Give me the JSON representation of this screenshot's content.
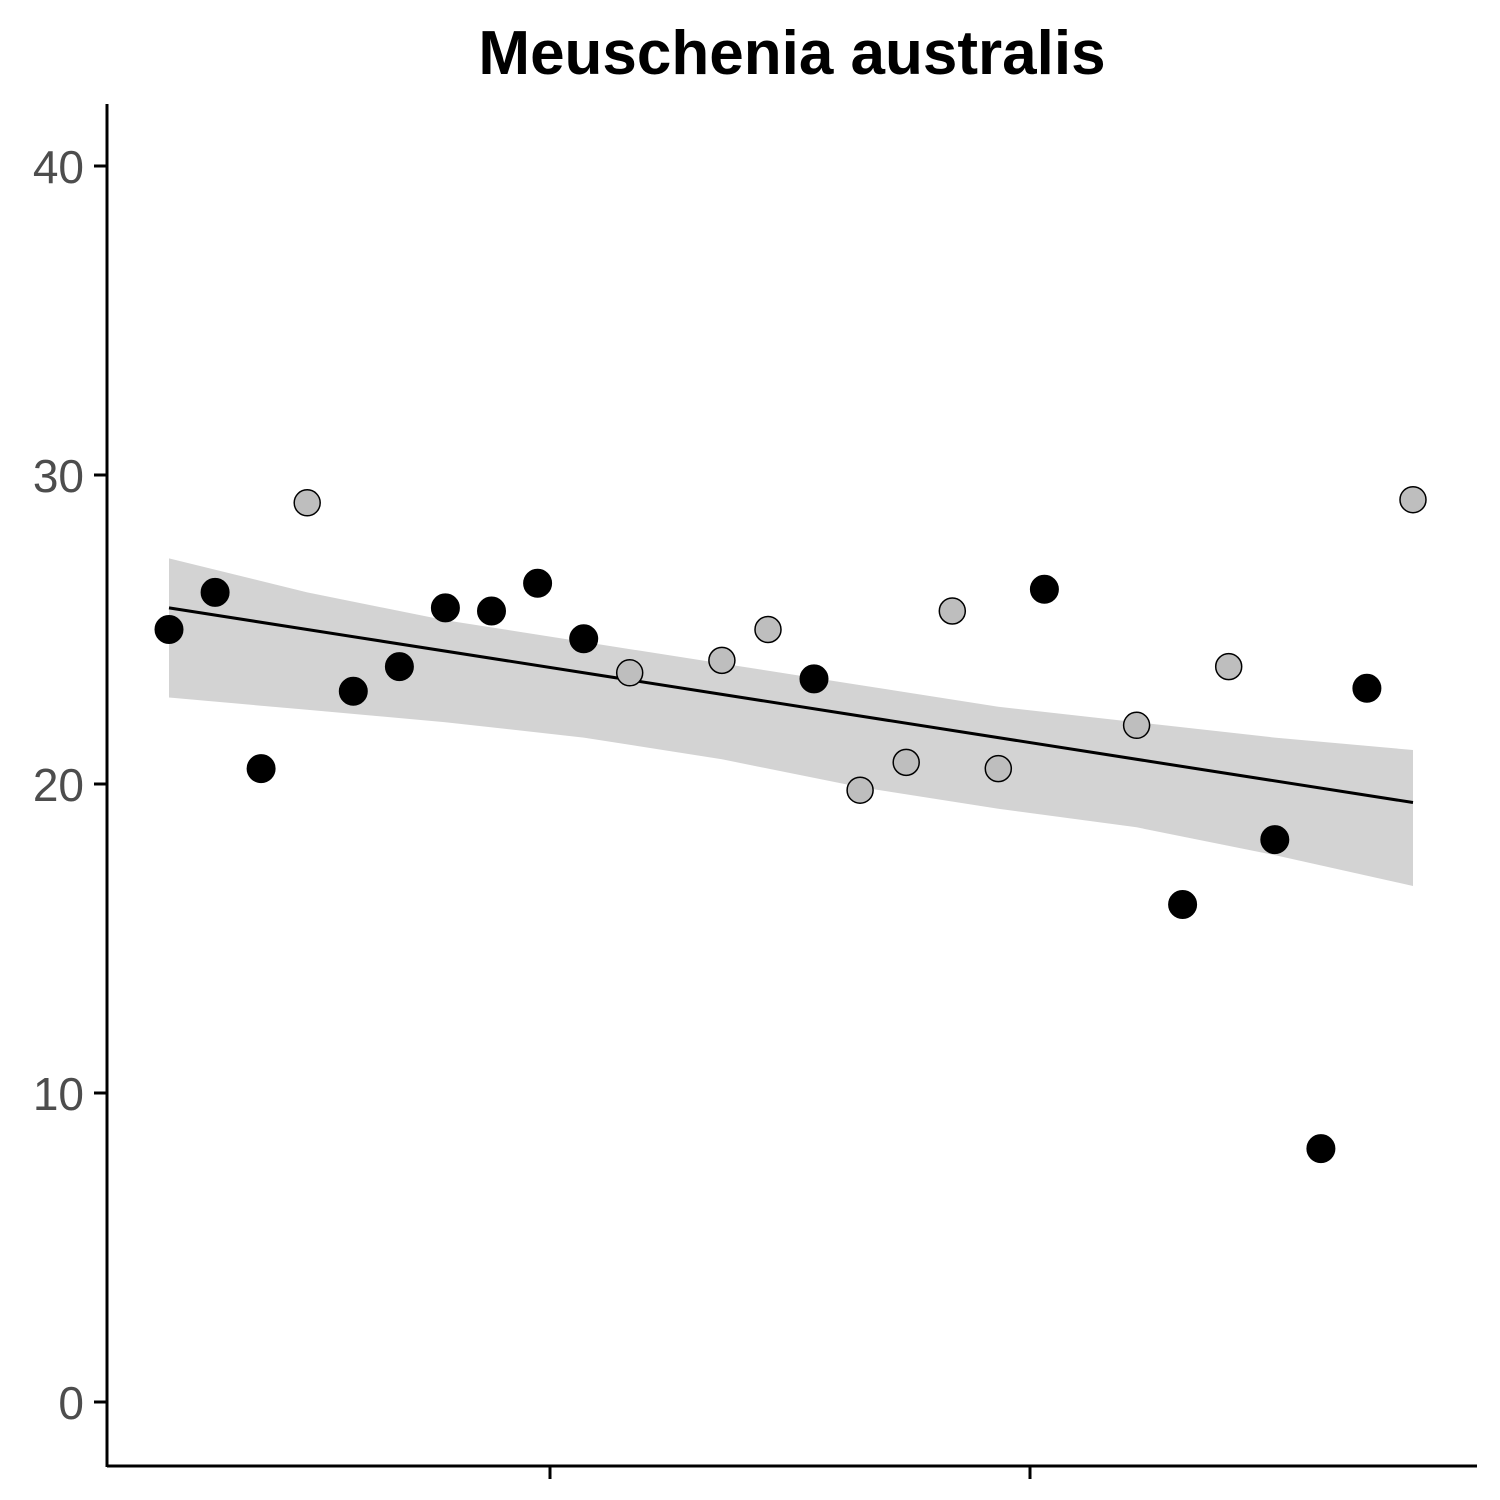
{
  "chart_data": {
    "type": "scatter",
    "title": "Meuschenia australis",
    "xlabel": "",
    "ylabel": "",
    "ylim": [
      -2,
      42
    ],
    "y_ticks": [
      0,
      10,
      20,
      30,
      40
    ],
    "x_tick_labels": [
      "",
      ""
    ],
    "grid": false,
    "legend": "none",
    "colors": {
      "filled": "#000000",
      "open": "#bebebe",
      "trend_line": "#000000",
      "confidence_band": "#d3d3d3"
    },
    "series": [
      {
        "style": "filled",
        "points": [
          {
            "x": 1,
            "y": 25.0
          },
          {
            "x": 2,
            "y": 26.2
          },
          {
            "x": 3,
            "y": 20.5
          },
          {
            "x": 5,
            "y": 23.0
          },
          {
            "x": 6,
            "y": 23.8
          },
          {
            "x": 7,
            "y": 25.7
          },
          {
            "x": 8,
            "y": 25.6
          },
          {
            "x": 9,
            "y": 26.5
          },
          {
            "x": 10,
            "y": 24.7
          },
          {
            "x": 15,
            "y": 23.4
          },
          {
            "x": 20,
            "y": 26.3
          },
          {
            "x": 23,
            "y": 16.1
          },
          {
            "x": 25,
            "y": 18.2
          },
          {
            "x": 26,
            "y": 8.2
          },
          {
            "x": 27,
            "y": 23.1
          }
        ]
      },
      {
        "style": "open",
        "points": [
          {
            "x": 4,
            "y": 29.1
          },
          {
            "x": 11,
            "y": 23.6
          },
          {
            "x": 13,
            "y": 24.0
          },
          {
            "x": 14,
            "y": 25.0
          },
          {
            "x": 16,
            "y": 19.8
          },
          {
            "x": 17,
            "y": 20.7
          },
          {
            "x": 18,
            "y": 25.6
          },
          {
            "x": 19,
            "y": 20.5
          },
          {
            "x": 22,
            "y": 21.9
          },
          {
            "x": 24,
            "y": 23.8
          },
          {
            "x": 28,
            "y": 29.2
          }
        ]
      }
    ],
    "trend_line": {
      "x": [
        1,
        28
      ],
      "y": [
        25.7,
        19.4
      ]
    },
    "confidence_band": {
      "x": [
        1,
        4,
        7,
        10,
        13,
        16,
        19,
        22,
        25,
        28
      ],
      "lower": [
        22.8,
        22.4,
        22.0,
        21.5,
        20.8,
        19.9,
        19.2,
        18.6,
        17.7,
        16.7
      ],
      "upper": [
        27.3,
        26.2,
        25.3,
        24.6,
        23.9,
        23.2,
        22.5,
        22.0,
        21.5,
        21.1
      ]
    }
  }
}
